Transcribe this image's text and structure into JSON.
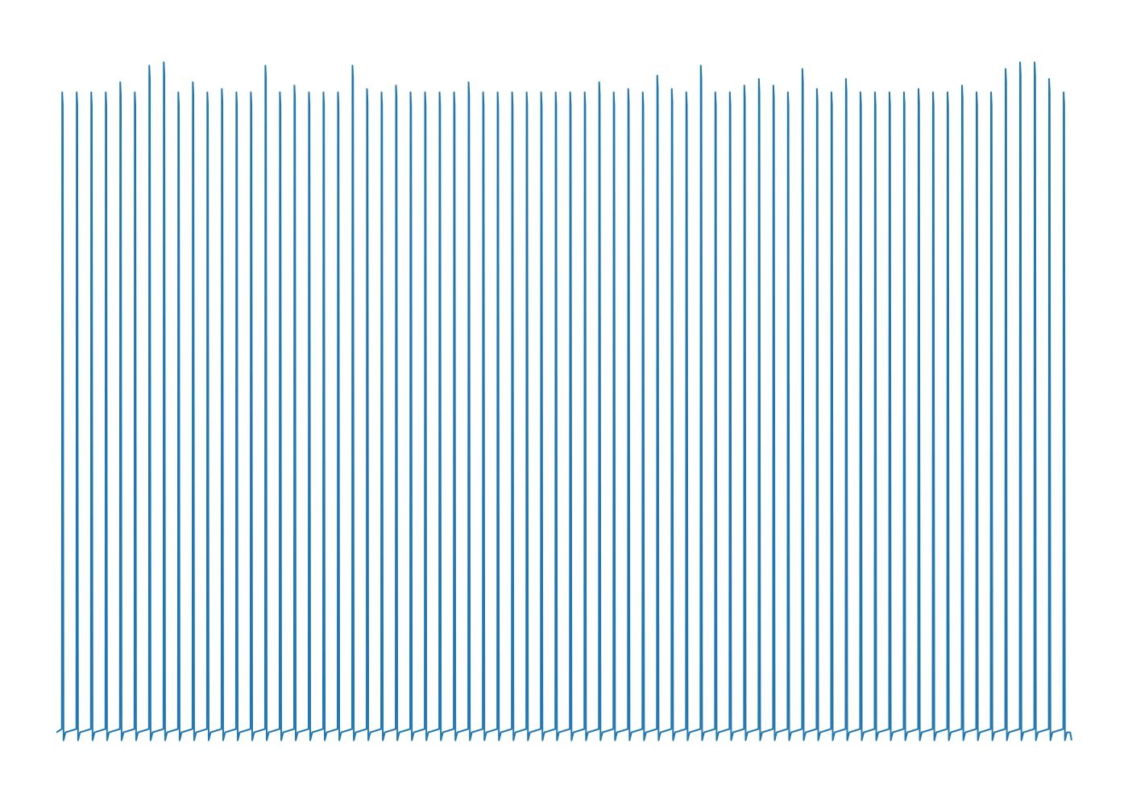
{
  "chart_data": {
    "type": "line",
    "title": "",
    "xlabel": "",
    "ylabel": "",
    "axes_visible": false,
    "grid": false,
    "legend": "none",
    "xlim": [
      0,
      140
    ],
    "ylim": [
      -0.5,
      10.5
    ],
    "series": [
      {
        "color": "#1f77b4",
        "peak_count": 70,
        "baseline": 0,
        "trough": -0.12,
        "peaks": [
          9.6,
          9.6,
          9.6,
          9.6,
          9.75,
          9.6,
          10.0,
          10.05,
          9.6,
          9.75,
          9.6,
          9.65,
          9.6,
          9.6,
          10.0,
          9.6,
          9.7,
          9.6,
          9.6,
          9.6,
          10.0,
          9.65,
          9.6,
          9.7,
          9.6,
          9.6,
          9.6,
          9.6,
          9.75,
          9.6,
          9.6,
          9.6,
          9.6,
          9.6,
          9.6,
          9.6,
          9.6,
          9.75,
          9.6,
          9.65,
          9.6,
          9.85,
          9.65,
          9.6,
          10.0,
          9.6,
          9.6,
          9.7,
          9.8,
          9.7,
          9.6,
          9.95,
          9.65,
          9.6,
          9.8,
          9.6,
          9.6,
          9.6,
          9.6,
          9.65,
          9.6,
          9.6,
          9.7,
          9.6,
          9.6,
          9.95,
          10.05,
          10.05,
          9.8,
          9.6
        ]
      }
    ]
  }
}
